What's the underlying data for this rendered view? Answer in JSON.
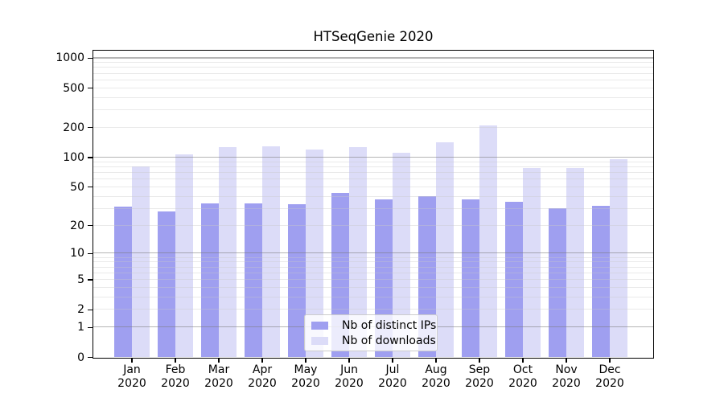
{
  "chart_data": {
    "type": "bar",
    "title": "HTSeqGenie 2020",
    "x_axis": {
      "months": [
        "Jan",
        "Feb",
        "Mar",
        "Apr",
        "May",
        "Jun",
        "Jul",
        "Aug",
        "Sep",
        "Oct",
        "Nov",
        "Dec"
      ],
      "year_label": "2020"
    },
    "y_axis": {
      "scale": "log10(value+1)",
      "tick_values": [
        0,
        1,
        2,
        5,
        10,
        20,
        50,
        100,
        200,
        500,
        1000
      ],
      "range": [
        0,
        1180
      ]
    },
    "series": [
      {
        "name": "Nb of distinct IPs",
        "color": "#9f9ff0",
        "values": [
          31,
          28,
          34,
          34,
          33,
          43,
          37,
          40,
          37,
          35,
          30,
          32
        ]
      },
      {
        "name": "Nb of downloads",
        "color": "#dcdcf8",
        "values": [
          80,
          106,
          126,
          128,
          120,
          127,
          111,
          140,
          210,
          77,
          77,
          95
        ]
      }
    ],
    "gridlines": {
      "major": [
        1,
        10,
        100,
        1000
      ],
      "minor": [
        2,
        3,
        4,
        5,
        6,
        7,
        8,
        9,
        20,
        30,
        40,
        50,
        60,
        70,
        80,
        90,
        200,
        300,
        400,
        500,
        600,
        700,
        800,
        900
      ]
    },
    "legend": {
      "position": "lower-center",
      "entries": [
        "Nb of distinct IPs",
        "Nb of downloads"
      ]
    }
  }
}
